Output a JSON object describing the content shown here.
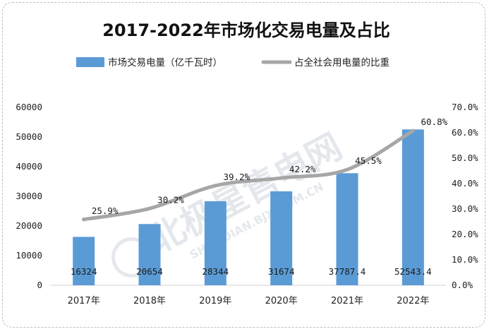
{
  "chart_data": {
    "type": "bar",
    "title": "2017-2022年市场化交易电量及占比",
    "categories": [
      "2017年",
      "2018年",
      "2019年",
      "2020年",
      "2021年",
      "2022年"
    ],
    "series": [
      {
        "name": "市场交易电量（亿千瓦时）",
        "type": "bar",
        "axis": "left",
        "values": [
          16324,
          20654,
          28344,
          31674,
          37787.4,
          52543.4
        ],
        "labels": [
          "16324",
          "20654",
          "28344",
          "31674",
          "37787.4",
          "52543.4"
        ],
        "color": "#5b9bd5"
      },
      {
        "name": "占全社会用电量的比重",
        "type": "line",
        "axis": "right",
        "values": [
          25.9,
          30.2,
          39.2,
          42.2,
          45.5,
          60.8
        ],
        "labels": [
          "25.9%",
          "30.2%",
          "39.2%",
          "42.2%",
          "45.5%",
          "60.8%"
        ],
        "color": "#a6a6a6"
      }
    ],
    "y_left": {
      "min": 0,
      "max": 60000,
      "ticks": [
        0,
        10000,
        20000,
        30000,
        40000,
        50000,
        60000
      ],
      "tick_labels": [
        "0",
        "10000",
        "20000",
        "30000",
        "40000",
        "50000",
        "60000"
      ]
    },
    "y_right": {
      "min": 0,
      "max": 70,
      "ticks": [
        0,
        10,
        20,
        30,
        40,
        50,
        60,
        70
      ],
      "tick_labels": [
        "0.0%",
        "10.0%",
        "20.0%",
        "30.0%",
        "40.0%",
        "50.0%",
        "60.0%",
        "70.0%"
      ]
    },
    "grid": false,
    "legend_position": "top"
  },
  "watermark": {
    "main": "北极星售电网",
    "sub": "SHOUDIAN.BJX.COM.CN"
  }
}
